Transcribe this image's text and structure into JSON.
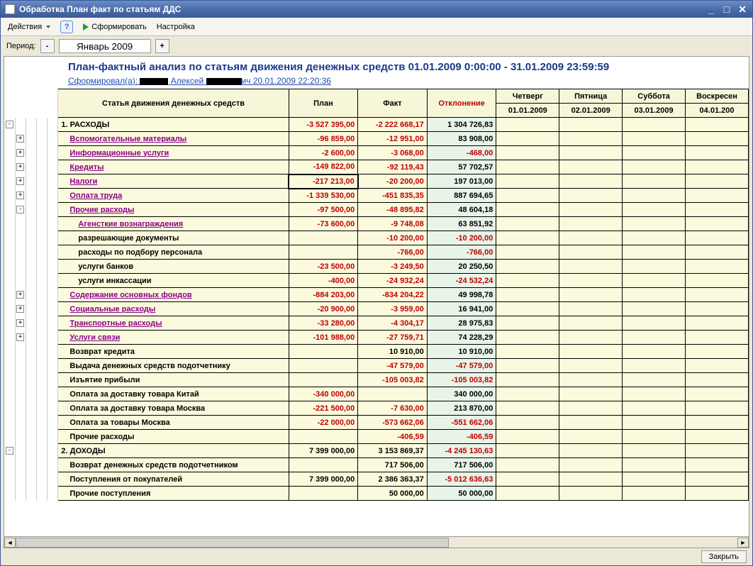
{
  "window": {
    "title": "Обработка  План факт по статьям ДДС"
  },
  "toolbar": {
    "actions": "Действия",
    "form": "Сформировать",
    "settings": "Настройка"
  },
  "period": {
    "label": "Период:",
    "value": "Январь 2009"
  },
  "report": {
    "title": "План-фактный анализ по статьям движения денежных средств  01.01.2009 0:00:00  -  31.01.2009 23:59:59",
    "generated_prefix": "Сформировал(а): ",
    "generated_name": "Алексей",
    "generated_suffix": "ич 20.01.2009 22:20:36"
  },
  "headers": {
    "name": "Статья движения денежных средств",
    "plan": "План",
    "fact": "Факт",
    "dev": "Отклонение",
    "d1a": "Четверг",
    "d1b": "01.01.2009",
    "d2a": "Пятница",
    "d2b": "02.01.2009",
    "d3a": "Суббота",
    "d3b": "03.01.2009",
    "d4a": "Воскресен",
    "d4b": "04.01.200"
  },
  "rows": [
    {
      "tree": "-",
      "lvl": 0,
      "name": "1. РАСХОДЫ",
      "cls": "plain",
      "plan": "-3 527 395,00",
      "fact": "-2 222 668,17",
      "dev": "1 304 726,83",
      "pn": 1,
      "fn": 1,
      "dn": 0
    },
    {
      "tree": "+",
      "lvl": 1,
      "name": "Вспомогательные материалы",
      "cls": "purple",
      "plan": "-96 859,00",
      "fact": "-12 951,00",
      "dev": "83 908,00",
      "pn": 1,
      "fn": 1,
      "dn": 0
    },
    {
      "tree": "+",
      "lvl": 1,
      "name": "Информационные услуги",
      "cls": "purple",
      "plan": "-2 600,00",
      "fact": "-3 068,00",
      "dev": "-468,00",
      "pn": 1,
      "fn": 1,
      "dn": 1
    },
    {
      "tree": "+",
      "lvl": 1,
      "name": "Кредиты",
      "cls": "purple",
      "plan": "-149 822,00",
      "fact": "-92 119,43",
      "dev": "57 702,57",
      "pn": 1,
      "fn": 1,
      "dn": 0
    },
    {
      "tree": "+",
      "lvl": 1,
      "name": "Налоги",
      "cls": "purple",
      "plan": "-217 213,00",
      "fact": "-20 200,00",
      "dev": "197 013,00",
      "pn": 1,
      "fn": 1,
      "dn": 0,
      "sel": 1
    },
    {
      "tree": "+",
      "lvl": 1,
      "name": "Оплата труда",
      "cls": "purple",
      "plan": "-1 339 530,00",
      "fact": "-451 835,35",
      "dev": "887 694,65",
      "pn": 1,
      "fn": 1,
      "dn": 0
    },
    {
      "tree": "-",
      "lvl": 1,
      "name": "Прочие расходы",
      "cls": "purple",
      "plan": "-97 500,00",
      "fact": "-48 895,82",
      "dev": "48 604,18",
      "pn": 1,
      "fn": 1,
      "dn": 0
    },
    {
      "tree": "",
      "lvl": 2,
      "name": "Агенсткие вознаграждения",
      "cls": "purple",
      "plan": "-73 600,00",
      "fact": "-9 748,08",
      "dev": "63 851,92",
      "pn": 1,
      "fn": 1,
      "dn": 0
    },
    {
      "tree": "",
      "lvl": 2,
      "name": "разрешающие документы",
      "cls": "plain",
      "plan": "",
      "fact": "-10 200,00",
      "dev": "-10 200,00",
      "pn": 0,
      "fn": 1,
      "dn": 1
    },
    {
      "tree": "",
      "lvl": 2,
      "name": "расходы по подбору персонала",
      "cls": "plain",
      "plan": "",
      "fact": "-766,00",
      "dev": "-766,00",
      "pn": 0,
      "fn": 1,
      "dn": 1
    },
    {
      "tree": "",
      "lvl": 2,
      "name": "услуги банков",
      "cls": "plain",
      "plan": "-23 500,00",
      "fact": "-3 249,50",
      "dev": "20 250,50",
      "pn": 1,
      "fn": 1,
      "dn": 0
    },
    {
      "tree": "",
      "lvl": 2,
      "name": "услуги инкассации",
      "cls": "plain",
      "plan": "-400,00",
      "fact": "-24 932,24",
      "dev": "-24 532,24",
      "pn": 1,
      "fn": 1,
      "dn": 1
    },
    {
      "tree": "+",
      "lvl": 1,
      "name": "Содержание основных фондов",
      "cls": "purple",
      "plan": "-884 203,00",
      "fact": "-834 204,22",
      "dev": "49 998,78",
      "pn": 1,
      "fn": 1,
      "dn": 0
    },
    {
      "tree": "+",
      "lvl": 1,
      "name": "Социальные расходы",
      "cls": "purple",
      "plan": "-20 900,00",
      "fact": "-3 959,00",
      "dev": "16 941,00",
      "pn": 1,
      "fn": 1,
      "dn": 0
    },
    {
      "tree": "+",
      "lvl": 1,
      "name": "Транспортные расходы",
      "cls": "purple",
      "plan": "-33 280,00",
      "fact": "-4 304,17",
      "dev": "28 975,83",
      "pn": 1,
      "fn": 1,
      "dn": 0
    },
    {
      "tree": "+",
      "lvl": 1,
      "name": "Услуги связи",
      "cls": "purple",
      "plan": "-101 988,00",
      "fact": "-27 759,71",
      "dev": "74 228,29",
      "pn": 1,
      "fn": 1,
      "dn": 0
    },
    {
      "tree": "",
      "lvl": 1,
      "name": "Возврат кредита",
      "cls": "plain",
      "plan": "",
      "fact": "10 910,00",
      "dev": "10 910,00",
      "pn": 0,
      "fn": 0,
      "dn": 0
    },
    {
      "tree": "",
      "lvl": 1,
      "name": "Выдача денежных средств подотчетнику",
      "cls": "plain",
      "plan": "",
      "fact": "-47 579,00",
      "dev": "-47 579,00",
      "pn": 0,
      "fn": 1,
      "dn": 1
    },
    {
      "tree": "",
      "lvl": 1,
      "name": "Изъятие прибыли",
      "cls": "plain",
      "plan": "",
      "fact": "-105 003,82",
      "dev": "-105 003,82",
      "pn": 0,
      "fn": 1,
      "dn": 1
    },
    {
      "tree": "",
      "lvl": 1,
      "name": "Оплата за доставку товара Китай",
      "cls": "plain",
      "plan": "-340 000,00",
      "fact": "",
      "dev": "340 000,00",
      "pn": 1,
      "fn": 0,
      "dn": 0
    },
    {
      "tree": "",
      "lvl": 1,
      "name": "Оплата за доставку товара Москва",
      "cls": "plain",
      "plan": "-221 500,00",
      "fact": "-7 630,00",
      "dev": "213 870,00",
      "pn": 1,
      "fn": 1,
      "dn": 0
    },
    {
      "tree": "",
      "lvl": 1,
      "name": "Оплата за товары Москва",
      "cls": "plain",
      "plan": "-22 000,00",
      "fact": "-573 662,06",
      "dev": "-551 662,06",
      "pn": 1,
      "fn": 1,
      "dn": 1
    },
    {
      "tree": "",
      "lvl": 1,
      "name": "Прочие расходы",
      "cls": "plain",
      "plan": "",
      "fact": "-406,59",
      "dev": "-406,59",
      "pn": 0,
      "fn": 1,
      "dn": 1
    },
    {
      "tree": "-",
      "lvl": 0,
      "name": "2. ДОХОДЫ",
      "cls": "plain",
      "plan": "7 399 000,00",
      "fact": "3 153 869,37",
      "dev": "-4 245 130,63",
      "pn": 0,
      "fn": 0,
      "dn": 1
    },
    {
      "tree": "",
      "lvl": 1,
      "name": "Возврат денежных средств подотчетником",
      "cls": "plain",
      "plan": "",
      "fact": "717 506,00",
      "dev": "717 506,00",
      "pn": 0,
      "fn": 0,
      "dn": 0
    },
    {
      "tree": "",
      "lvl": 1,
      "name": "Поступления от покупателей",
      "cls": "plain",
      "plan": "7 399 000,00",
      "fact": "2 386 363,37",
      "dev": "-5 012 636,63",
      "pn": 0,
      "fn": 0,
      "dn": 1
    },
    {
      "tree": "",
      "lvl": 1,
      "name": "Прочие поступления",
      "cls": "plain",
      "plan": "",
      "fact": "50 000,00",
      "dev": "50 000,00",
      "pn": 0,
      "fn": 0,
      "dn": 0
    }
  ],
  "footer": {
    "close": "Закрыть"
  }
}
